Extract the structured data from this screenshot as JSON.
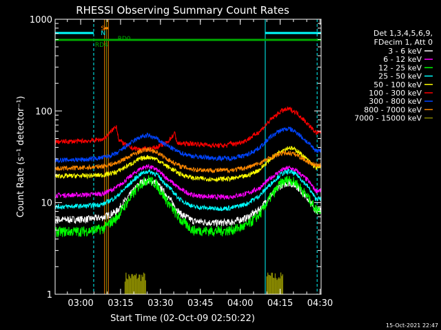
{
  "chart_data": {
    "type": "line",
    "title": "RHESSI Observing Summary Count Rates",
    "xlabel": "Start Time (02-Oct-09 02:50:22)",
    "ylabel": "Count Rate (s⁻¹ detector⁻¹)",
    "yscale": "log",
    "ylim": [
      1,
      1000
    ],
    "xlim_minutes": [
      0,
      100
    ],
    "x_ticks": [
      "03:00",
      "03:15",
      "03:30",
      "03:45",
      "04:00",
      "04:15",
      "04:30"
    ],
    "x_tick_minutes": [
      9.6,
      24.6,
      39.6,
      54.6,
      69.6,
      84.6,
      99.6
    ],
    "y_ticks": [
      "1",
      "10",
      "100",
      "1000"
    ],
    "y_tick_values": [
      1,
      10,
      100,
      1000
    ],
    "legend_header": [
      "Det 1,3,4,5,6,9,",
      "FDecim 1, Att 0"
    ],
    "legend_position": "right",
    "timestamp": "15-Oct-2021 22:47",
    "series": [
      {
        "name": "3 - 6 keV",
        "color": "#ffffff",
        "points": [
          [
            0,
            6.5
          ],
          [
            12,
            6.6
          ],
          [
            18,
            6.9
          ],
          [
            23,
            8.0
          ],
          [
            28,
            12
          ],
          [
            32,
            16.5
          ],
          [
            35,
            17.3
          ],
          [
            38,
            16.5
          ],
          [
            42,
            12
          ],
          [
            47,
            7.6
          ],
          [
            52,
            6.3
          ],
          [
            60,
            6.0
          ],
          [
            66,
            6.1
          ],
          [
            72,
            6.8
          ],
          [
            77,
            8.5
          ],
          [
            81,
            12
          ],
          [
            85,
            15.5
          ],
          [
            88,
            16.5
          ],
          [
            91,
            15
          ],
          [
            95,
            11
          ],
          [
            98,
            8.2
          ]
        ]
      },
      {
        "name": "6 - 12 keV",
        "color": "#ff00ff",
        "points": [
          [
            0,
            12
          ],
          [
            12,
            12.2
          ],
          [
            18,
            12.5
          ],
          [
            23,
            14.5
          ],
          [
            28,
            19
          ],
          [
            32,
            23.5
          ],
          [
            35,
            25
          ],
          [
            38,
            23
          ],
          [
            42,
            18.5
          ],
          [
            47,
            14
          ],
          [
            52,
            12
          ],
          [
            60,
            11.5
          ],
          [
            66,
            11.6
          ],
          [
            72,
            12.5
          ],
          [
            77,
            14.5
          ],
          [
            81,
            18.5
          ],
          [
            85,
            22.5
          ],
          [
            88,
            24
          ],
          [
            91,
            22
          ],
          [
            95,
            17.5
          ],
          [
            98,
            13.5
          ]
        ]
      },
      {
        "name": "12 - 25 keV",
        "color": "#00ff00",
        "points": [
          [
            0,
            4.8
          ],
          [
            12,
            4.9
          ],
          [
            18,
            5.2
          ],
          [
            23,
            6.8
          ],
          [
            28,
            11
          ],
          [
            32,
            16
          ],
          [
            35,
            18
          ],
          [
            38,
            16
          ],
          [
            42,
            10.5
          ],
          [
            47,
            6.5
          ],
          [
            52,
            5.0
          ],
          [
            60,
            4.9
          ],
          [
            66,
            5.0
          ],
          [
            72,
            5.6
          ],
          [
            77,
            7.5
          ],
          [
            81,
            11.5
          ],
          [
            85,
            16.5
          ],
          [
            88,
            18
          ],
          [
            91,
            16
          ],
          [
            95,
            11.5
          ],
          [
            98,
            8.5
          ]
        ]
      },
      {
        "name": "25 - 50 keV",
        "color": "#00ffff",
        "points": [
          [
            0,
            9.0
          ],
          [
            12,
            9.2
          ],
          [
            18,
            9.6
          ],
          [
            23,
            11.5
          ],
          [
            28,
            16
          ],
          [
            32,
            20.5
          ],
          [
            35,
            22
          ],
          [
            38,
            20.5
          ],
          [
            42,
            15.5
          ],
          [
            47,
            10.8
          ],
          [
            52,
            9.0
          ],
          [
            60,
            8.6
          ],
          [
            66,
            8.7
          ],
          [
            72,
            9.7
          ],
          [
            77,
            12
          ],
          [
            81,
            16
          ],
          [
            85,
            20.5
          ],
          [
            88,
            22
          ],
          [
            91,
            20
          ],
          [
            95,
            15
          ],
          [
            98,
            11
          ]
        ]
      },
      {
        "name": "50 - 100 keV",
        "color": "#ffff00",
        "points": [
          [
            0,
            19.5
          ],
          [
            12,
            19.6
          ],
          [
            18,
            20
          ],
          [
            23,
            21.5
          ],
          [
            28,
            26
          ],
          [
            32,
            30
          ],
          [
            35,
            31.5
          ],
          [
            38,
            30
          ],
          [
            42,
            25
          ],
          [
            47,
            20.5
          ],
          [
            52,
            18.5
          ],
          [
            60,
            18
          ],
          [
            66,
            18.2
          ],
          [
            72,
            19.5
          ],
          [
            77,
            23
          ],
          [
            81,
            30
          ],
          [
            85,
            37
          ],
          [
            88,
            40
          ],
          [
            91,
            37
          ],
          [
            95,
            29
          ],
          [
            98,
            24
          ]
        ]
      },
      {
        "name": "100 - 300 keV",
        "color": "#ff0000",
        "points": [
          [
            0,
            46
          ],
          [
            12,
            47
          ],
          [
            18,
            49
          ],
          [
            20,
            55
          ],
          [
            22,
            64
          ],
          [
            23,
            69
          ],
          [
            24,
            48
          ],
          [
            28,
            40
          ],
          [
            32,
            38
          ],
          [
            35,
            38.5
          ],
          [
            38,
            40
          ],
          [
            42,
            45
          ],
          [
            45,
            57
          ],
          [
            46,
            44
          ],
          [
            52,
            44
          ],
          [
            60,
            42
          ],
          [
            65,
            42
          ],
          [
            66,
            46
          ],
          [
            67,
            43
          ],
          [
            72,
            48
          ],
          [
            77,
            60
          ],
          [
            81,
            80
          ],
          [
            85,
            100
          ],
          [
            88,
            105
          ],
          [
            91,
            95
          ],
          [
            95,
            72
          ],
          [
            98,
            58
          ]
        ]
      },
      {
        "name": "300 - 800 keV",
        "color": "#0044ff",
        "points": [
          [
            0,
            29
          ],
          [
            12,
            29.5
          ],
          [
            18,
            31
          ],
          [
            23,
            34
          ],
          [
            28,
            44
          ],
          [
            32,
            52
          ],
          [
            35,
            54
          ],
          [
            38,
            50
          ],
          [
            42,
            42
          ],
          [
            47,
            35
          ],
          [
            52,
            32
          ],
          [
            60,
            30.5
          ],
          [
            66,
            30.5
          ],
          [
            72,
            33
          ],
          [
            77,
            40
          ],
          [
            81,
            52
          ],
          [
            85,
            62
          ],
          [
            88,
            64
          ],
          [
            91,
            58
          ],
          [
            95,
            45
          ],
          [
            98,
            37
          ]
        ]
      },
      {
        "name": "800 - 7000 keV",
        "color": "#ff8800",
        "points": [
          [
            0,
            23.5
          ],
          [
            12,
            24
          ],
          [
            18,
            25
          ],
          [
            23,
            27
          ],
          [
            28,
            32
          ],
          [
            32,
            36.5
          ],
          [
            35,
            38
          ],
          [
            38,
            36
          ],
          [
            42,
            30
          ],
          [
            47,
            25
          ],
          [
            52,
            23
          ],
          [
            60,
            22.5
          ],
          [
            66,
            22.6
          ],
          [
            72,
            24
          ],
          [
            77,
            27
          ],
          [
            81,
            31
          ],
          [
            85,
            34.5
          ],
          [
            88,
            35
          ],
          [
            91,
            33
          ],
          [
            95,
            28
          ],
          [
            98,
            25.5
          ]
        ]
      },
      {
        "name": "7000 - 15000 keV",
        "color": "#888800",
        "points": []
      }
    ],
    "bursts_7000_15000": [
      {
        "start": 26.3,
        "end": 34.1,
        "peak": 1.75
      },
      {
        "start": 79.6,
        "end": 85.8,
        "peak": 1.75
      }
    ],
    "state_bars": [
      {
        "label": "S",
        "color": "#ff8800",
        "segments": [
          [
            18.5,
            20.0
          ]
        ]
      },
      {
        "label": "N",
        "color": "#00ffff",
        "segments": [
          [
            0,
            14.5
          ],
          [
            79.0,
            100
          ]
        ]
      },
      {
        "label": "RD4",
        "color": "#00aa00",
        "segments": [
          [
            0,
            41.2
          ]
        ]
      },
      {
        "label": "RD0",
        "color": "#00aa00",
        "segments": [
          [
            41.2,
            100
          ]
        ]
      }
    ]
  }
}
